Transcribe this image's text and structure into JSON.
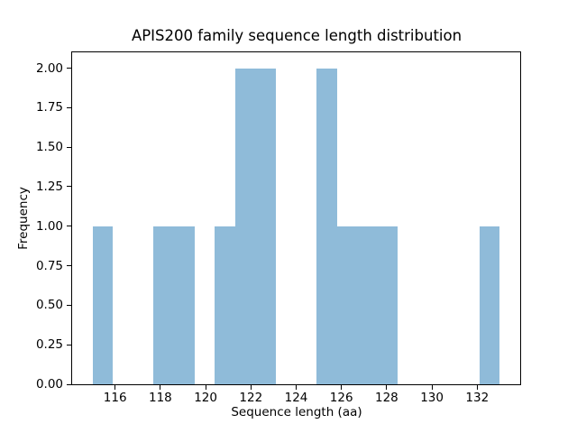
{
  "chart_data": {
    "type": "bar",
    "subtype": "histogram",
    "title": "APIS200 family sequence length distribution",
    "xlabel": "Sequence length (aa)",
    "ylabel": "Frequency",
    "bin_edges": [
      115.0,
      115.9,
      116.8,
      117.7,
      118.6,
      119.5,
      120.4,
      121.3,
      122.2,
      123.1,
      124.0,
      124.9,
      125.8,
      126.7,
      127.6,
      128.5,
      129.4,
      130.3,
      131.2,
      132.1,
      133.0
    ],
    "counts": [
      1,
      0,
      0,
      1,
      1,
      0,
      1,
      2,
      2,
      0,
      0,
      2,
      1,
      1,
      1,
      0,
      0,
      0,
      0,
      1
    ],
    "xlim": [
      114.1,
      133.9
    ],
    "ylim": [
      0,
      2.1
    ],
    "xticks": [
      116,
      118,
      120,
      122,
      124,
      126,
      128,
      130,
      132
    ],
    "xtick_labels": [
      "116",
      "118",
      "120",
      "122",
      "124",
      "126",
      "128",
      "130",
      "132"
    ],
    "yticks": [
      0,
      0.25,
      0.5,
      0.75,
      1.0,
      1.25,
      1.5,
      1.75,
      2.0
    ],
    "ytick_labels": [
      "0.00",
      "0.25",
      "0.50",
      "0.75",
      "1.00",
      "1.25",
      "1.50",
      "1.75",
      "2.00"
    ],
    "bar_color": "#8FBBD9",
    "spine_color": "#000000",
    "grid": false,
    "legend": null
  }
}
